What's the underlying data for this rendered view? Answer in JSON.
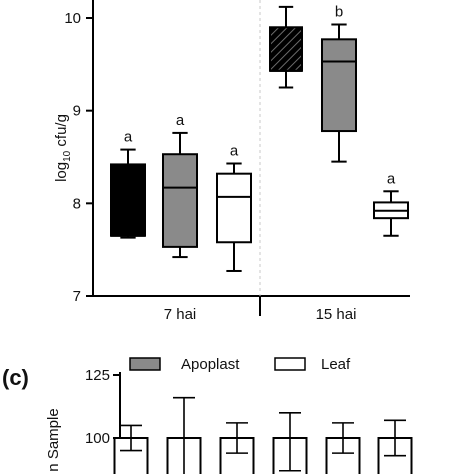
{
  "chart_data": [
    {
      "type": "box",
      "ylabel": "log10 cfu/g",
      "ylim": [
        7,
        10.15
      ],
      "yticks": [
        "7",
        "8",
        "9",
        "10"
      ],
      "groups": [
        "7 hai",
        "15 hai"
      ],
      "boxes": [
        {
          "group": "7 hai",
          "fill": "#000000",
          "whisker_low": 7.63,
          "q1": 7.65,
          "median": 7.65,
          "q3": 8.42,
          "whisker_high": 8.58,
          "label": "a"
        },
        {
          "group": "7 hai",
          "fill": "#8a8a8a",
          "whisker_low": 7.42,
          "q1": 7.53,
          "median": 8.17,
          "q3": 8.53,
          "whisker_high": 8.76,
          "label": "a"
        },
        {
          "group": "7 hai",
          "fill": "#ffffff",
          "whisker_low": 7.27,
          "q1": 7.58,
          "median": 8.07,
          "q3": 8.32,
          "whisker_high": 8.43,
          "label": "a"
        },
        {
          "group": "15 hai",
          "fill": "hatch",
          "whisker_low": 9.25,
          "q1": 9.43,
          "median": 9.43,
          "q3": 9.9,
          "whisker_high": 10.12,
          "label": ""
        },
        {
          "group": "15 hai",
          "fill": "#8a8a8a",
          "whisker_low": 8.45,
          "q1": 8.78,
          "median": 9.53,
          "q3": 9.77,
          "whisker_high": 9.93,
          "label": "b"
        },
        {
          "group": "15 hai",
          "fill": "#ffffff",
          "whisker_low": 7.65,
          "q1": 7.84,
          "median": 7.92,
          "q3": 8.01,
          "whisker_high": 8.13,
          "label": "a"
        }
      ]
    },
    {
      "type": "bar",
      "panel_label": "(c)",
      "ylabel": "n Sample",
      "yticks": [
        "100",
        "125"
      ],
      "legend": [
        {
          "name": "Apoplast",
          "color": "#8a8a8a"
        },
        {
          "name": "Leaf",
          "color": "#ffffff"
        }
      ],
      "values": [
        100,
        100,
        100,
        100,
        100,
        100
      ],
      "errors": [
        [
          95,
          105
        ],
        [
          85,
          116
        ],
        [
          94,
          106
        ],
        [
          87,
          110
        ],
        [
          94,
          106
        ],
        [
          93,
          107
        ]
      ],
      "bar_fill": "#ffffff"
    }
  ]
}
